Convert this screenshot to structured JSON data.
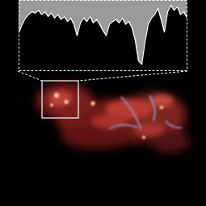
{
  "chart_data": {
    "type": "area",
    "x": [
      0,
      1,
      2,
      3,
      4,
      5,
      6,
      7,
      8,
      9,
      10,
      11,
      12,
      13,
      14,
      15,
      16,
      17,
      18,
      19,
      20,
      21,
      22,
      23,
      24,
      25,
      26,
      27,
      28,
      29,
      30,
      31,
      32,
      33,
      34,
      35,
      36,
      37,
      38,
      39,
      40,
      41,
      42,
      43,
      44,
      45,
      46,
      47,
      48,
      49,
      50,
      51,
      52
    ],
    "values": [
      0.55,
      0.66,
      0.75,
      0.8,
      0.84,
      0.82,
      0.86,
      0.8,
      0.84,
      0.77,
      0.82,
      0.75,
      0.8,
      0.73,
      0.77,
      0.7,
      0.75,
      0.66,
      0.5,
      0.68,
      0.75,
      0.7,
      0.77,
      0.68,
      0.73,
      0.66,
      0.57,
      0.5,
      0.66,
      0.7,
      0.73,
      0.68,
      0.75,
      0.66,
      0.7,
      0.61,
      0.43,
      0.14,
      0.09,
      0.41,
      0.66,
      0.75,
      0.8,
      0.89,
      0.73,
      0.55,
      0.84,
      0.93,
      0.86,
      0.91,
      0.8,
      0.84,
      0.75
    ],
    "xlim": [
      0,
      52
    ],
    "ylim": [
      0,
      1
    ],
    "tick_labels": false,
    "color": "#9a9a9a"
  }
}
